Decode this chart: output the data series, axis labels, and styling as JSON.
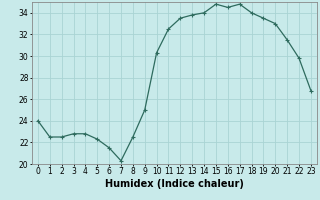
{
  "x": [
    0,
    1,
    2,
    3,
    4,
    5,
    6,
    7,
    8,
    9,
    10,
    11,
    12,
    13,
    14,
    15,
    16,
    17,
    18,
    19,
    20,
    21,
    22,
    23
  ],
  "y": [
    24,
    22.5,
    22.5,
    22.8,
    22.8,
    22.3,
    21.5,
    20.3,
    22.5,
    25.0,
    30.3,
    32.5,
    33.5,
    33.8,
    34.0,
    34.8,
    34.5,
    34.8,
    34.0,
    33.5,
    33.0,
    31.5,
    29.8,
    26.8
  ],
  "xlabel": "Humidex (Indice chaleur)",
  "ylim": [
    20,
    35
  ],
  "xlim": [
    -0.5,
    23.5
  ],
  "yticks": [
    20,
    22,
    24,
    26,
    28,
    30,
    32,
    34
  ],
  "xticks": [
    0,
    1,
    2,
    3,
    4,
    5,
    6,
    7,
    8,
    9,
    10,
    11,
    12,
    13,
    14,
    15,
    16,
    17,
    18,
    19,
    20,
    21,
    22,
    23
  ],
  "line_color": "#2e6b5e",
  "marker": "+",
  "marker_size": 3.5,
  "marker_linewidth": 0.8,
  "bg_color": "#c8eaea",
  "grid_color": "#aad4d4",
  "tick_fontsize": 5.5,
  "xlabel_fontsize": 7,
  "xlabel_fontweight": "bold",
  "line_width": 0.9
}
